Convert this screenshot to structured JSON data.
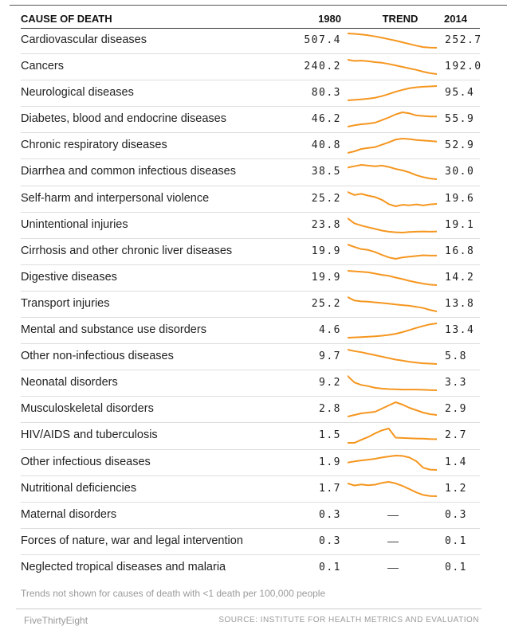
{
  "chart_data": {
    "type": "table",
    "columns": {
      "cause": "CAUSE OF DEATH",
      "y1980": "1980",
      "trend": "TREND",
      "y2014": "2014"
    },
    "trend_color": "#f5961f",
    "rows": [
      {
        "cause": "Cardiovascular diseases",
        "v1980": "507.4",
        "v2014": "252.7",
        "trend": [
          507,
          500,
          490,
          475,
          455,
          430,
          405,
          380,
          350,
          320,
          290,
          265,
          255,
          252
        ]
      },
      {
        "cause": "Cancers",
        "v1980": "240.2",
        "v2014": "192.0",
        "trend": [
          240,
          236,
          237,
          235,
          232,
          230,
          226,
          221,
          216,
          211,
          206,
          200,
          195,
          192
        ]
      },
      {
        "cause": "Neurological diseases",
        "v1980": "80.3",
        "v2014": "95.4",
        "trend": [
          80,
          80.5,
          81,
          81.8,
          82.8,
          84.5,
          86.8,
          89.2,
          91.3,
          93,
          94,
          94.6,
          95,
          95.4
        ]
      },
      {
        "cause": "Diabetes, blood and endocrine diseases",
        "v1980": "46.2",
        "v2014": "55.9",
        "trend": [
          46.2,
          47.5,
          48.5,
          49,
          50,
          52.5,
          55,
          58,
          60,
          59,
          57,
          56.5,
          56,
          55.9
        ]
      },
      {
        "cause": "Chronic respiratory diseases",
        "v1980": "40.8",
        "v2014": "52.9",
        "trend": [
          40.8,
          42.5,
          45,
          46,
          47,
          49.5,
          52,
          55,
          56,
          55.5,
          54.5,
          54,
          53.5,
          52.9
        ]
      },
      {
        "cause": "Diarrhea and common infectious diseases",
        "v1980": "38.5",
        "v2014": "30.0",
        "trend": [
          38.5,
          39.5,
          40.5,
          40,
          39.5,
          40,
          39,
          37.5,
          36.5,
          35,
          33,
          31.5,
          30.5,
          30
        ]
      },
      {
        "cause": "Self-harm and interpersonal violence",
        "v1980": "25.2",
        "v2014": "19.6",
        "trend": [
          25.2,
          23.8,
          24.3,
          23.5,
          22.8,
          21.5,
          19.5,
          18.5,
          19.2,
          19,
          19.4,
          18.9,
          19.4,
          19.6
        ]
      },
      {
        "cause": "Unintentional injuries",
        "v1980": "23.8",
        "v2014": "19.1",
        "trend": [
          23.8,
          22,
          21.2,
          20.6,
          20,
          19.4,
          19,
          18.8,
          18.7,
          18.9,
          19,
          19.1,
          19,
          19.1
        ]
      },
      {
        "cause": "Cirrhosis and other chronic liver diseases",
        "v1980": "19.9",
        "v2014": "16.8",
        "trend": [
          19.9,
          19.2,
          18.6,
          18.4,
          17.8,
          17,
          16.3,
          15.9,
          16.3,
          16.5,
          16.7,
          16.9,
          16.8,
          16.8
        ]
      },
      {
        "cause": "Digestive diseases",
        "v1980": "19.9",
        "v2014": "14.2",
        "trend": [
          19.9,
          19.7,
          19.5,
          19.3,
          18.8,
          18.3,
          17.9,
          17.2,
          16.6,
          15.9,
          15.3,
          14.8,
          14.4,
          14.2
        ]
      },
      {
        "cause": "Transport injuries",
        "v1980": "25.2",
        "v2014": "13.8",
        "trend": [
          25.2,
          22.5,
          21.8,
          21.5,
          21,
          20.5,
          20,
          19.3,
          18.8,
          18.3,
          17.5,
          16.5,
          15,
          13.8
        ]
      },
      {
        "cause": "Mental and substance use disorders",
        "v1980": "4.6",
        "v2014": "13.4",
        "trend": [
          4.6,
          4.8,
          5,
          5.2,
          5.5,
          5.8,
          6.3,
          7,
          8,
          9.3,
          10.6,
          11.8,
          12.8,
          13.4
        ]
      },
      {
        "cause": "Other non-infectious diseases",
        "v1980": "9.7",
        "v2014": "5.8",
        "trend": [
          9.7,
          9.3,
          9,
          8.6,
          8.2,
          7.8,
          7.4,
          7,
          6.7,
          6.4,
          6.2,
          6,
          5.9,
          5.8
        ]
      },
      {
        "cause": "Neonatal disorders",
        "v1980": "9.2",
        "v2014": "3.3",
        "trend": [
          9.2,
          6.5,
          5.5,
          5,
          4.3,
          4,
          3.8,
          3.7,
          3.6,
          3.6,
          3.6,
          3.5,
          3.4,
          3.3
        ]
      },
      {
        "cause": "Musculoskeletal disorders",
        "v1980": "2.8",
        "v2014": "2.9",
        "trend": [
          2.8,
          2.9,
          3,
          3.05,
          3.1,
          3.3,
          3.5,
          3.7,
          3.55,
          3.35,
          3.2,
          3.05,
          2.95,
          2.9
        ]
      },
      {
        "cause": "HIV/AIDS and tuberculosis",
        "v1980": "1.5",
        "v2014": "2.7",
        "trend": [
          1.5,
          1.5,
          2.5,
          3.4,
          4.6,
          5.6,
          6.2,
          3.2,
          3.1,
          3,
          2.9,
          2.85,
          2.75,
          2.7
        ]
      },
      {
        "cause": "Other infectious diseases",
        "v1980": "1.9",
        "v2014": "1.4",
        "trend": [
          1.9,
          1.98,
          2.05,
          2.1,
          2.16,
          2.25,
          2.32,
          2.38,
          2.36,
          2.25,
          2,
          1.55,
          1.42,
          1.4
        ]
      },
      {
        "cause": "Nutritional deficiencies",
        "v1980": "1.7",
        "v2014": "1.2",
        "trend": [
          1.7,
          1.62,
          1.66,
          1.63,
          1.65,
          1.72,
          1.76,
          1.7,
          1.6,
          1.48,
          1.35,
          1.25,
          1.21,
          1.2
        ]
      },
      {
        "cause": "Maternal disorders",
        "v1980": "0.3",
        "v2014": "0.3",
        "trend": null
      },
      {
        "cause": "Forces of nature, war and legal intervention",
        "v1980": "0.3",
        "v2014": "0.1",
        "trend": null
      },
      {
        "cause": "Neglected tropical diseases and malaria",
        "v1980": "0.1",
        "v2014": "0.1",
        "trend": null
      }
    ],
    "dash": "—",
    "note": "Trends not shown for causes of death with <1 death per 100,000 people"
  },
  "footer": {
    "brand": "FiveThirtyEight",
    "source": "SOURCE: INSTITUTE FOR HEALTH METRICS AND EVALUATION"
  }
}
